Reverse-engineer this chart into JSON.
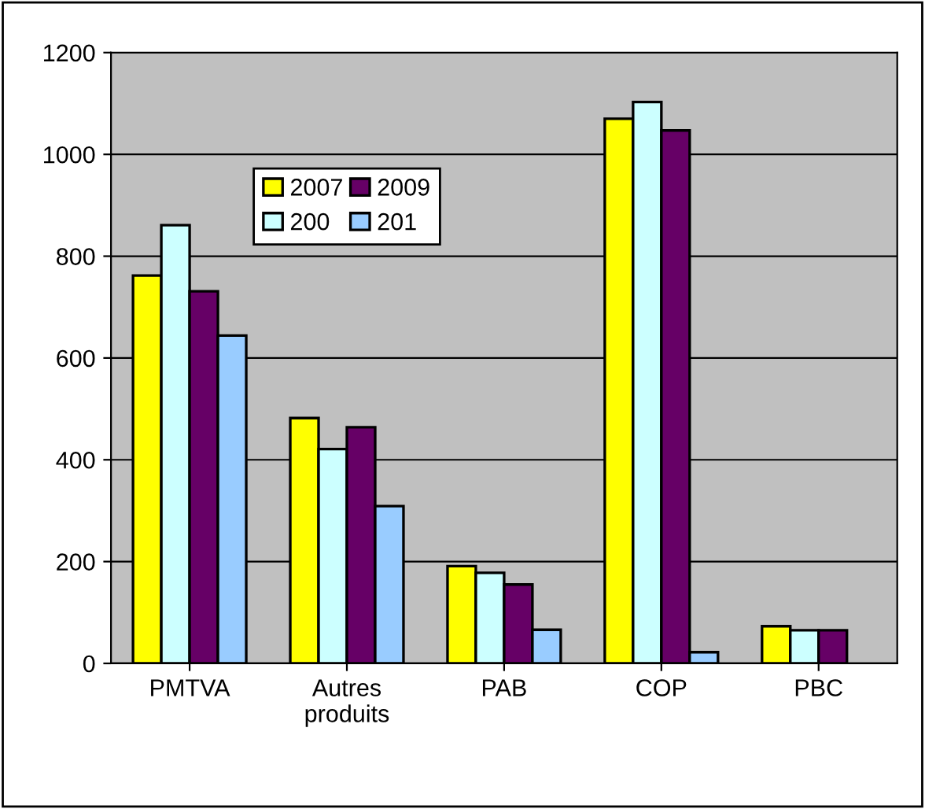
{
  "chart_data": {
    "type": "bar",
    "categories": [
      "PMTVA",
      "Autres\nproduits",
      "PAB",
      "COP",
      "PBC"
    ],
    "series": [
      {
        "name": "2007",
        "color": "#ffff00",
        "values": [
          762,
          482,
          191,
          1070,
          73
        ]
      },
      {
        "name": "200",
        "color": "#ccffff",
        "values": [
          861,
          421,
          178,
          1103,
          65
        ]
      },
      {
        "name": "2009",
        "color": "#660066",
        "values": [
          731,
          464,
          155,
          1047,
          65
        ]
      },
      {
        "name": "201",
        "color": "#99ccff",
        "values": [
          644,
          309,
          66,
          22,
          null
        ]
      }
    ],
    "ylim": [
      0,
      1200
    ],
    "yticks": [
      0,
      200,
      400,
      600,
      800,
      1000,
      1200
    ],
    "grid": "y",
    "legend": "top"
  }
}
